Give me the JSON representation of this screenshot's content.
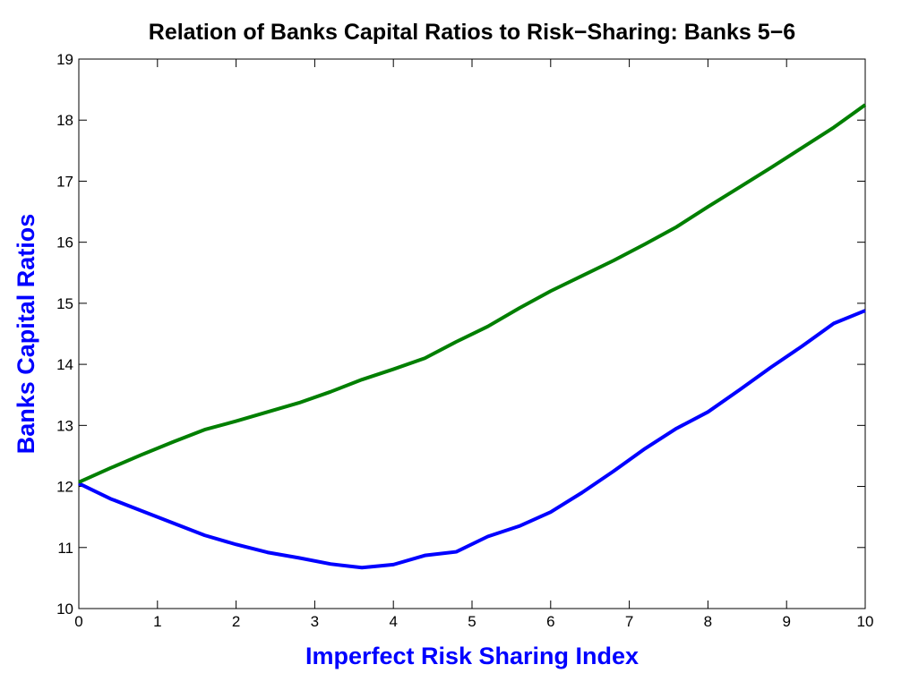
{
  "chart_data": {
    "type": "line",
    "title": "Relation of Banks Capital Ratios to Risk−Sharing: Banks 5−6",
    "xlabel": "Imperfect Risk Sharing Index",
    "ylabel": "Banks Capital Ratios",
    "x": [
      0,
      0.4,
      0.8,
      1.2,
      1.6,
      2.0,
      2.4,
      2.8,
      3.2,
      3.6,
      4.0,
      4.4,
      4.8,
      5.2,
      5.6,
      6.0,
      6.4,
      6.8,
      7.2,
      7.6,
      8.0,
      8.4,
      8.8,
      9.2,
      9.6,
      10
    ],
    "series": [
      {
        "color": "#0000ff",
        "values": [
          12.05,
          11.8,
          11.6,
          11.4,
          11.2,
          11.05,
          10.92,
          10.83,
          10.73,
          10.67,
          10.72,
          10.87,
          10.93,
          11.18,
          11.35,
          11.58,
          11.9,
          12.25,
          12.62,
          12.95,
          13.22,
          13.58,
          13.95,
          14.3,
          14.67,
          14.88
        ]
      },
      {
        "color": "#007f00",
        "values": [
          12.07,
          12.3,
          12.52,
          12.73,
          12.93,
          13.07,
          13.22,
          13.37,
          13.55,
          13.75,
          13.92,
          14.1,
          14.37,
          14.62,
          14.92,
          15.2,
          15.45,
          15.7,
          15.97,
          16.25,
          16.58,
          16.9,
          17.22,
          17.55,
          17.88,
          18.25
        ]
      }
    ],
    "xlim": [
      0,
      10
    ],
    "xticks": [
      0,
      1,
      2,
      3,
      4,
      5,
      6,
      7,
      8,
      9,
      10
    ],
    "ylim": [
      10,
      19
    ],
    "yticks": [
      10,
      11,
      12,
      13,
      14,
      15,
      16,
      17,
      18,
      19
    ],
    "grid": false
  }
}
